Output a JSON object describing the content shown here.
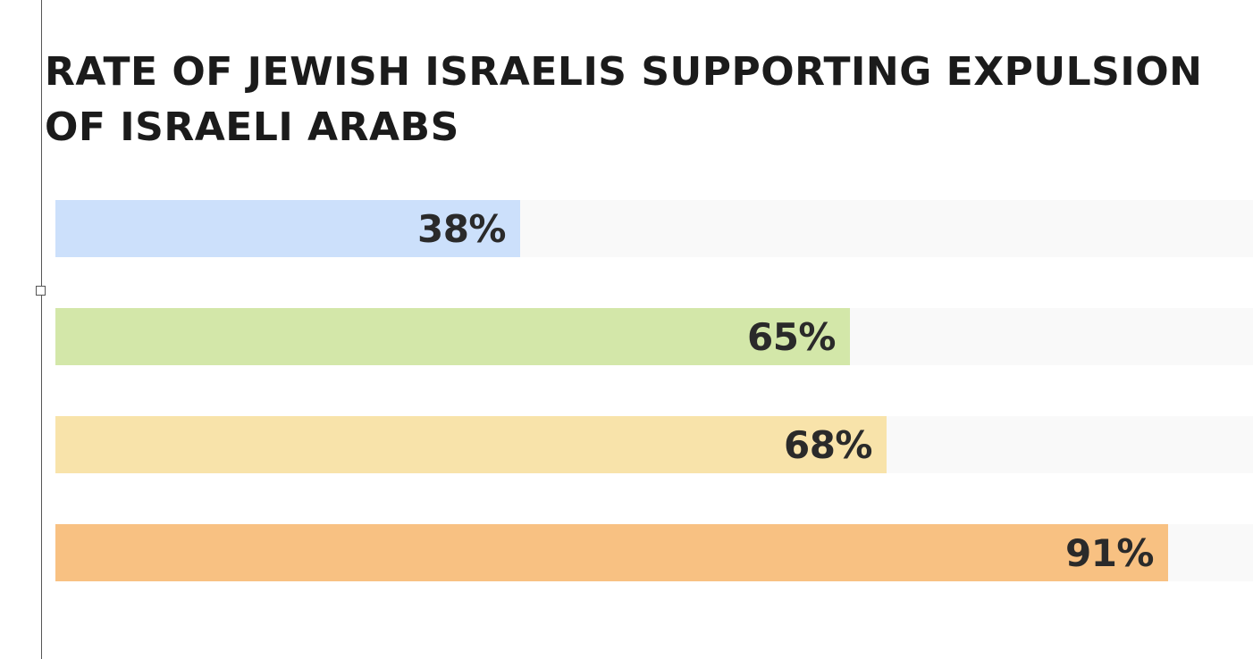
{
  "chart_data": {
    "type": "bar",
    "orientation": "horizontal",
    "title": "RATE OF JEWISH ISRAELIS SUPPORTING EXPULSION OF ISRAELI ARABS",
    "unit": "%",
    "xlim": [
      0,
      100
    ],
    "grid": false,
    "legend": "none",
    "bars": [
      {
        "value": 38,
        "label": "38%",
        "color": "#cce0fb"
      },
      {
        "value": 65,
        "label": "65%",
        "color": "#d3e7a9"
      },
      {
        "value": 68,
        "label": "68%",
        "color": "#f8e3aa"
      },
      {
        "value": 91,
        "label": "91%",
        "color": "#f8c182"
      }
    ]
  }
}
